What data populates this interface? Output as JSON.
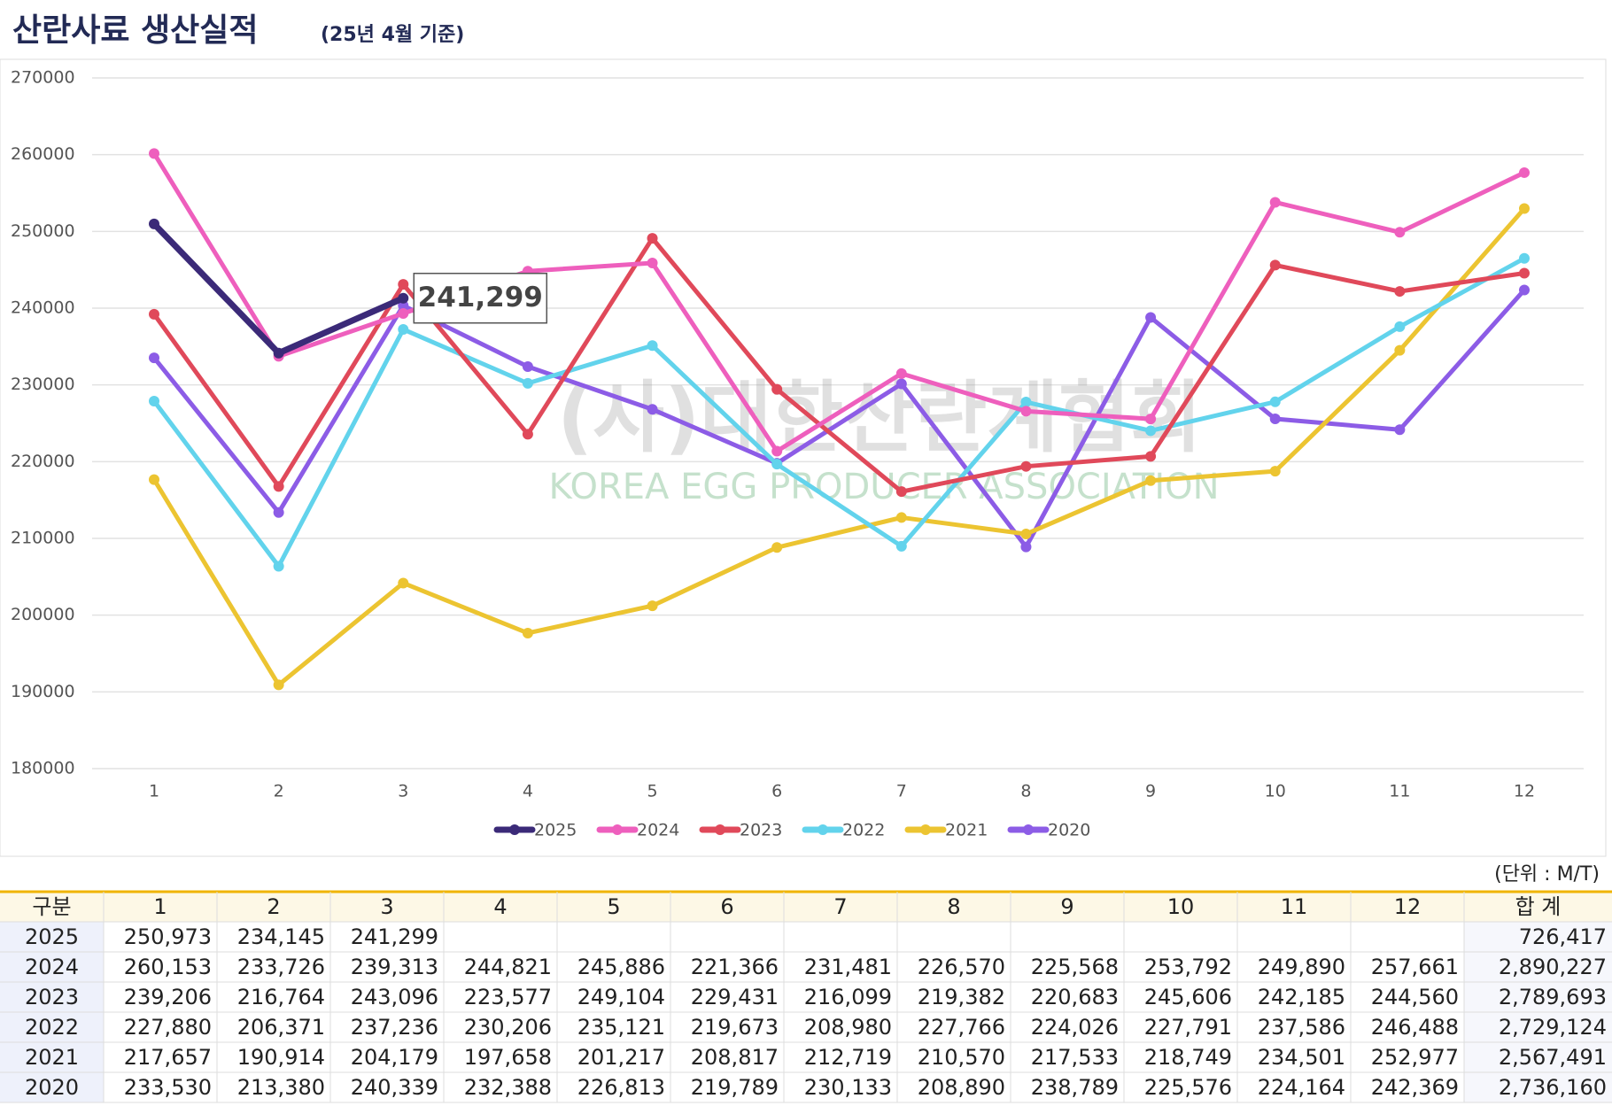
{
  "title": "산란사료 생산실적",
  "subtitle": "(25년 4월 기준)",
  "chart_data": {
    "type": "line",
    "categories": [
      "1",
      "2",
      "3",
      "4",
      "5",
      "6",
      "7",
      "8",
      "9",
      "10",
      "11",
      "12"
    ],
    "series": [
      {
        "name": "2025",
        "color": "#3b2a78",
        "values": [
          250973,
          234145,
          241299,
          null,
          null,
          null,
          null,
          null,
          null,
          null,
          null,
          null
        ]
      },
      {
        "name": "2024",
        "color": "#ee5fbd",
        "values": [
          260153,
          233726,
          239313,
          244821,
          245886,
          221366,
          231481,
          226570,
          225568,
          253792,
          249890,
          257661
        ]
      },
      {
        "name": "2023",
        "color": "#e0495a",
        "values": [
          239206,
          216764,
          243096,
          223577,
          249104,
          229431,
          216099,
          219382,
          220683,
          245606,
          242185,
          244560
        ]
      },
      {
        "name": "2022",
        "color": "#62d3ec",
        "values": [
          227880,
          206371,
          237236,
          230206,
          235121,
          219673,
          208980,
          227766,
          224026,
          227791,
          237586,
          246488
        ]
      },
      {
        "name": "2021",
        "color": "#ecc431",
        "values": [
          217657,
          190914,
          204179,
          197658,
          201217,
          208817,
          212719,
          210570,
          217533,
          218749,
          234501,
          252977
        ]
      },
      {
        "name": "2020",
        "color": "#8c5ce6",
        "values": [
          233530,
          213380,
          240339,
          232388,
          226813,
          219789,
          230133,
          208890,
          238789,
          225576,
          224164,
          242369
        ]
      }
    ],
    "ylim": [
      180000,
      270000
    ],
    "yticks": [
      180000,
      190000,
      200000,
      210000,
      220000,
      230000,
      240000,
      250000,
      260000,
      270000
    ],
    "grid": true,
    "legend": "bottom",
    "annotation": "241,299",
    "watermark": "(사)대한산란계협회",
    "watermark_sub": "KOREA EGG PRODUCER ASSOCIATION"
  },
  "table": {
    "unit": "(단위 : M/T)",
    "header": [
      "구분",
      "1",
      "2",
      "3",
      "4",
      "5",
      "6",
      "7",
      "8",
      "9",
      "10",
      "11",
      "12",
      "합 계"
    ],
    "rows": [
      [
        "2025",
        "250,973",
        "234,145",
        "241,299",
        null,
        null,
        null,
        null,
        null,
        null,
        null,
        null,
        null,
        "726,417"
      ],
      [
        "2024",
        "260,153",
        "233,726",
        "239,313",
        "244,821",
        "245,886",
        "221,366",
        "231,481",
        "226,570",
        "225,568",
        "253,792",
        "249,890",
        "257,661",
        "2,890,227"
      ],
      [
        "2023",
        "239,206",
        "216,764",
        "243,096",
        "223,577",
        "249,104",
        "229,431",
        "216,099",
        "219,382",
        "220,683",
        "245,606",
        "242,185",
        "244,560",
        "2,789,693"
      ],
      [
        "2022",
        "227,880",
        "206,371",
        "237,236",
        "230,206",
        "235,121",
        "219,673",
        "208,980",
        "227,766",
        "224,026",
        "227,791",
        "237,586",
        "246,488",
        "2,729,124"
      ],
      [
        "2021",
        "217,657",
        "190,914",
        "204,179",
        "197,658",
        "201,217",
        "208,817",
        "212,719",
        "210,570",
        "217,533",
        "218,749",
        "234,501",
        "252,977",
        "2,567,491"
      ],
      [
        "2020",
        "233,530",
        "213,380",
        "240,339",
        "232,388",
        "226,813",
        "219,789",
        "230,133",
        "208,890",
        "238,789",
        "225,576",
        "224,164",
        "242,369",
        "2,736,160"
      ]
    ]
  }
}
